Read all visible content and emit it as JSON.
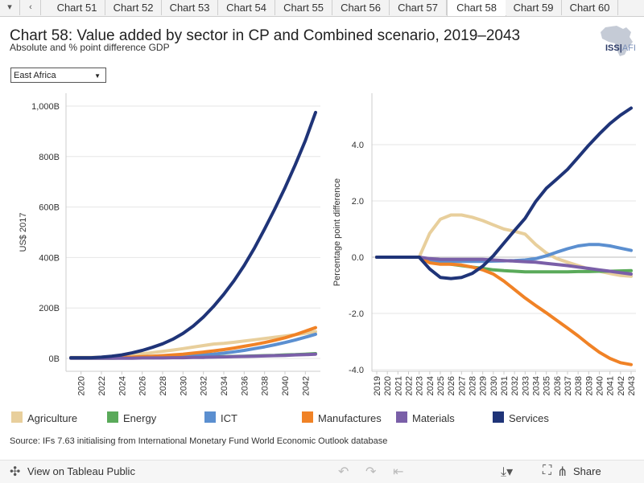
{
  "tabs": {
    "prev_icon": "chevron-left-icon",
    "items": [
      {
        "label": "Chart 51"
      },
      {
        "label": "Chart 52"
      },
      {
        "label": "Chart 53"
      },
      {
        "label": "Chart 54"
      },
      {
        "label": "Chart 55"
      },
      {
        "label": "Chart 56"
      },
      {
        "label": "Chart 57"
      },
      {
        "label": "Chart 58"
      },
      {
        "label": "Chart 59"
      },
      {
        "label": "Chart 60"
      }
    ],
    "active": "Chart 58"
  },
  "header": {
    "title": "Chart 58: Value added by sector in CP and Combined scenario, 2019–2043",
    "subtitle": "Absolute and % point difference GDP",
    "logo_text": "ISS",
    "logo_suffix": "AFI"
  },
  "filter": {
    "selected": "East Africa"
  },
  "colors": {
    "Agriculture": "#e8cf9c",
    "Energy": "#5aaa5a",
    "ICT": "#5b8fd0",
    "Manufactures": "#f08226",
    "Materials": "#7a5fa8",
    "Services": "#1f3478"
  },
  "legend": [
    "Agriculture",
    "Energy",
    "ICT",
    "Manufactures",
    "Materials",
    "Services"
  ],
  "source": "Source: IFs 7.63 initialising from International Monetary Fund World Economic Outlook database",
  "footer": {
    "view_link": "View on Tableau Public",
    "share": "Share"
  },
  "chart_data": [
    {
      "type": "line",
      "title": "",
      "ylabel": "US$ 2017",
      "xlabel": "",
      "ylim": [
        0,
        1000
      ],
      "yticks": [
        0,
        200,
        400,
        600,
        800,
        1000
      ],
      "ytick_labels": [
        "0B",
        "200B",
        "400B",
        "600B",
        "800B",
        "1,000B"
      ],
      "xlim": [
        2019,
        2043
      ],
      "xtick_labels": [
        "2020",
        "2022",
        "2024",
        "2026",
        "2028",
        "2030",
        "2032",
        "2034",
        "2036",
        "2038",
        "2040",
        "2042"
      ],
      "x": [
        2019,
        2020,
        2021,
        2022,
        2023,
        2024,
        2025,
        2026,
        2027,
        2028,
        2029,
        2030,
        2031,
        2032,
        2033,
        2034,
        2035,
        2036,
        2037,
        2038,
        2039,
        2040,
        2041,
        2042,
        2043
      ],
      "series": [
        {
          "name": "Agriculture",
          "values": [
            4,
            4,
            4,
            5,
            7,
            10,
            14,
            18,
            23,
            28,
            33,
            39,
            45,
            51,
            57,
            60,
            64,
            69,
            74,
            79,
            84,
            89,
            94,
            100,
            106
          ]
        },
        {
          "name": "Energy",
          "values": [
            1,
            1,
            1,
            1,
            1,
            2,
            2,
            3,
            3,
            4,
            4,
            5,
            5,
            6,
            6,
            7,
            8,
            9,
            10,
            11,
            12,
            14,
            15,
            17,
            19
          ]
        },
        {
          "name": "ICT",
          "values": [
            2,
            2,
            2,
            2,
            2,
            3,
            3,
            4,
            5,
            6,
            7,
            9,
            11,
            14,
            17,
            21,
            26,
            32,
            39,
            46,
            54,
            63,
            73,
            84,
            96
          ]
        },
        {
          "name": "Manufactures",
          "values": [
            2,
            2,
            2,
            2,
            3,
            4,
            5,
            7,
            9,
            11,
            14,
            17,
            21,
            25,
            30,
            35,
            41,
            48,
            55,
            63,
            72,
            82,
            94,
            108,
            122
          ]
        },
        {
          "name": "Materials",
          "values": [
            1,
            1,
            1,
            1,
            1,
            1,
            1,
            2,
            2,
            2,
            3,
            3,
            4,
            4,
            5,
            6,
            7,
            8,
            9,
            10,
            11,
            12,
            14,
            15,
            17
          ]
        },
        {
          "name": "Services",
          "values": [
            3,
            3,
            3,
            5,
            9,
            14,
            22,
            32,
            44,
            58,
            76,
            99,
            128,
            164,
            206,
            254,
            308,
            368,
            437,
            513,
            592,
            676,
            767,
            863,
            975
          ]
        }
      ]
    },
    {
      "type": "line",
      "title": "",
      "ylabel": "Percentage point difference",
      "xlabel": "",
      "ylim": [
        -4.3,
        5.8
      ],
      "yticks": [
        -4,
        -2,
        0,
        2,
        4
      ],
      "ytick_labels": [
        "-4.0",
        "-2.0",
        "0.0",
        "2.0",
        "4.0"
      ],
      "xlim": [
        2019,
        2043
      ],
      "xtick_labels": [
        "2019",
        "2020",
        "2021",
        "2022",
        "2023",
        "2024",
        "2025",
        "2026",
        "2027",
        "2028",
        "2029",
        "2030",
        "2031",
        "2032",
        "2033",
        "2034",
        "2035",
        "2036",
        "2037",
        "2038",
        "2039",
        "2040",
        "2041",
        "2042",
        "2043"
      ],
      "x": [
        2019,
        2020,
        2021,
        2022,
        2023,
        2024,
        2025,
        2026,
        2027,
        2028,
        2029,
        2030,
        2031,
        2032,
        2033,
        2034,
        2035,
        2036,
        2037,
        2038,
        2039,
        2040,
        2041,
        2042,
        2043
      ],
      "series": [
        {
          "name": "Agriculture",
          "values": [
            0,
            0,
            0,
            0,
            0,
            0.85,
            1.35,
            1.5,
            1.5,
            1.42,
            1.3,
            1.15,
            1.0,
            0.92,
            0.82,
            0.45,
            0.15,
            -0.05,
            -0.18,
            -0.3,
            -0.42,
            -0.5,
            -0.58,
            -0.65,
            -0.68
          ]
        },
        {
          "name": "Energy",
          "values": [
            0,
            0,
            0,
            0,
            0,
            -0.12,
            -0.2,
            -0.25,
            -0.3,
            -0.35,
            -0.4,
            -0.45,
            -0.48,
            -0.5,
            -0.52,
            -0.52,
            -0.52,
            -0.52,
            -0.52,
            -0.51,
            -0.51,
            -0.5,
            -0.5,
            -0.49,
            -0.48
          ]
        },
        {
          "name": "ICT",
          "values": [
            0,
            0,
            0,
            0,
            0,
            -0.12,
            -0.15,
            -0.15,
            -0.15,
            -0.15,
            -0.15,
            -0.14,
            -0.13,
            -0.12,
            -0.1,
            -0.05,
            0.05,
            0.18,
            0.3,
            0.4,
            0.45,
            0.45,
            0.4,
            0.32,
            0.24
          ]
        },
        {
          "name": "Manufactures",
          "values": [
            0,
            0,
            0,
            0,
            0,
            -0.2,
            -0.25,
            -0.25,
            -0.28,
            -0.35,
            -0.45,
            -0.6,
            -0.85,
            -1.15,
            -1.45,
            -1.72,
            -1.98,
            -2.25,
            -2.52,
            -2.8,
            -3.1,
            -3.38,
            -3.6,
            -3.75,
            -3.82
          ]
        },
        {
          "name": "Materials",
          "values": [
            0,
            0,
            0,
            0,
            0,
            -0.05,
            -0.08,
            -0.08,
            -0.08,
            -0.08,
            -0.08,
            -0.1,
            -0.12,
            -0.14,
            -0.16,
            -0.18,
            -0.22,
            -0.26,
            -0.3,
            -0.35,
            -0.4,
            -0.45,
            -0.5,
            -0.55,
            -0.6
          ]
        },
        {
          "name": "Services",
          "values": [
            0,
            0,
            0,
            0,
            0,
            -0.42,
            -0.72,
            -0.76,
            -0.72,
            -0.58,
            -0.32,
            0.05,
            0.5,
            0.95,
            1.38,
            1.98,
            2.45,
            2.78,
            3.12,
            3.55,
            3.98,
            4.38,
            4.75,
            5.05,
            5.3
          ]
        }
      ]
    }
  ]
}
